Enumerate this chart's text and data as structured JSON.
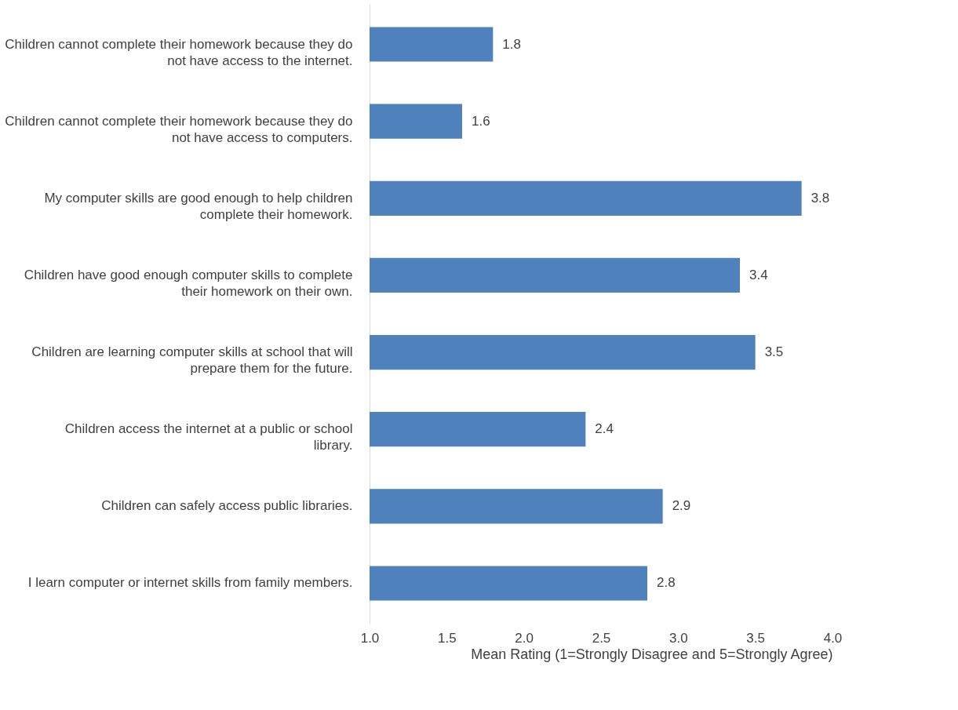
{
  "chart_data": {
    "type": "bar",
    "orientation": "horizontal",
    "xlabel": "Mean Rating (1=Strongly Disagree and 5=Strongly Agree)",
    "categories": [
      "Children cannot complete their homework because they do not have access to the internet.",
      "Children cannot complete their homework because they do not have access to computers.",
      "My computer skills are good enough to help children complete their homework.",
      "Children have good enough computer skills to complete their homework on their own.",
      "Children are learning computer skills at school that will prepare them for the future.",
      "Children access the internet at a public or school library.",
      "Children can safely access public libraries.",
      "I learn computer or internet skills from family members."
    ],
    "values": [
      1.8,
      1.6,
      3.8,
      3.4,
      3.5,
      2.4,
      2.9,
      2.8
    ],
    "color": "#4f81bd",
    "xlim": [
      1,
      4
    ],
    "xticks": [
      {
        "value": 1,
        "label": "1.0"
      },
      {
        "value": 1.5,
        "label": "1.5"
      },
      {
        "value": 2,
        "label": "2.0"
      },
      {
        "value": 2.5,
        "label": "2.5"
      },
      {
        "value": 3,
        "label": "3.0"
      },
      {
        "value": 3.5,
        "label": "3.5"
      },
      {
        "value": 4,
        "label": "4.0"
      }
    ],
    "data_labels": true,
    "grid": false
  }
}
